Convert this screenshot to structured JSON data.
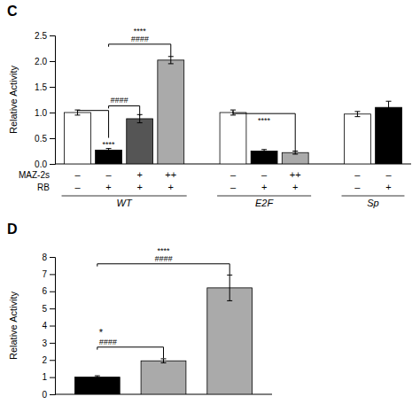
{
  "chart_data": [
    {
      "type": "bar",
      "title": "C",
      "y_label": "Relative Activity",
      "ylim": [
        0,
        2.5
      ],
      "yticks": [
        {
          "value": 0.0,
          "label": "0.0"
        },
        0.5,
        {
          "value": 1.0,
          "label": "1.0"
        },
        1.5,
        {
          "value": 2.0,
          "label": "2.0"
        },
        2.5
      ],
      "row_labels": [
        "MAZ-2s",
        "RB"
      ],
      "groups": [
        {
          "label": "WT",
          "values": [
            1.0,
            0.27,
            0.88,
            2.02
          ],
          "errors": [
            0.05,
            0.03,
            0.08,
            0.07
          ],
          "colors": [
            "white",
            "black",
            "#555555",
            "#aaaaaa"
          ],
          "maz2s": [
            "–",
            "–",
            "+",
            "++"
          ],
          "rb": [
            "–",
            "+",
            "+",
            "+"
          ]
        },
        {
          "label": "E2F",
          "values": [
            1.0,
            0.25,
            0.22
          ],
          "errors": [
            0.05,
            0.03,
            0.03
          ],
          "colors": [
            "white",
            "black",
            "#aaaaaa"
          ],
          "maz2s": [
            "–",
            "–",
            "++"
          ],
          "rb": [
            "–",
            "+",
            "+"
          ]
        },
        {
          "label": "Sp",
          "values": [
            0.97,
            1.1
          ],
          "errors": [
            0.05,
            0.12
          ],
          "colors": [
            "white",
            "black"
          ],
          "maz2s": [
            "–",
            "–"
          ],
          "rb": [
            "–",
            "+"
          ]
        }
      ],
      "annotations": [
        "####",
        "****",
        "####",
        "****",
        "****"
      ]
    },
    {
      "type": "bar",
      "title": "D",
      "y_label": "Relative Activity",
      "ylim": [
        0,
        8
      ],
      "yticks": [
        0,
        1,
        2,
        3,
        4,
        5,
        6,
        7,
        8
      ],
      "values": [
        1.0,
        1.95,
        6.2
      ],
      "errors": [
        0.08,
        0.12,
        0.75
      ],
      "colors": [
        "black",
        "#aaaaaa",
        "#aaaaaa"
      ],
      "annotations": [
        "####",
        "*",
        "####",
        "****"
      ]
    }
  ]
}
